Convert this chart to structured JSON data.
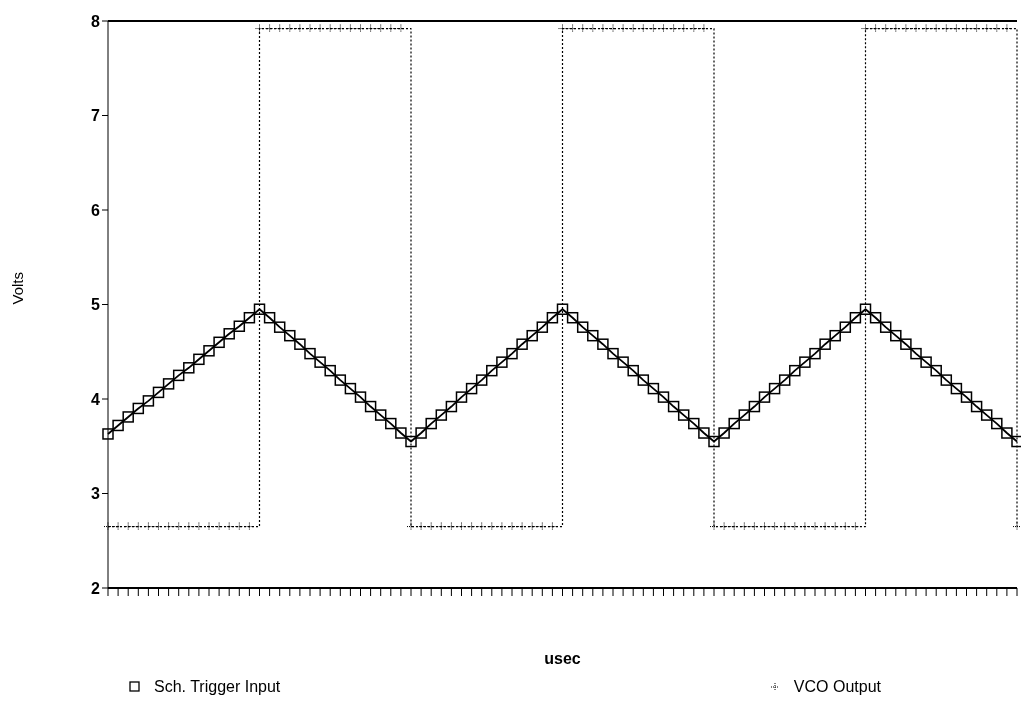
{
  "chart_data": {
    "type": "line",
    "xlabel": "usec",
    "ylabel": "Volts",
    "categories": [
      null,
      null,
      null,
      null,
      null,
      null,
      null,
      null,
      null,
      null,
      null,
      null,
      null,
      null,
      null,
      null,
      null,
      null,
      null,
      null,
      null,
      null,
      null,
      null,
      null,
      null,
      null,
      null,
      null,
      null,
      null,
      null,
      null,
      null,
      null,
      null,
      null,
      null,
      null,
      null,
      null,
      null,
      null,
      null,
      null,
      null,
      null,
      null,
      null,
      null,
      null,
      null,
      null,
      null,
      null,
      null,
      null,
      null,
      null,
      null,
      null,
      null,
      null,
      null,
      null,
      null,
      null,
      null,
      null,
      null,
      null,
      null,
      null,
      null,
      null,
      null,
      null,
      null,
      null,
      null,
      null,
      null,
      null,
      null,
      null,
      null,
      null,
      null,
      null,
      null,
      null
    ],
    "series": [
      {
        "name": "Sch. Trigger Input",
        "color": "#000000",
        "marker": "square",
        "line_style": "solid",
        "values": [
          3.63,
          3.72,
          3.81,
          3.9,
          3.98,
          4.07,
          4.16,
          4.25,
          4.33,
          4.42,
          4.51,
          4.6,
          4.69,
          4.77,
          4.86,
          4.95,
          4.86,
          4.76,
          4.67,
          4.58,
          4.48,
          4.39,
          4.3,
          4.2,
          4.11,
          4.02,
          3.92,
          3.83,
          3.74,
          3.64,
          3.55,
          3.64,
          3.74,
          3.83,
          3.92,
          4.02,
          4.11,
          4.2,
          4.3,
          4.39,
          4.48,
          4.58,
          4.67,
          4.76,
          4.86,
          4.95,
          4.86,
          4.76,
          4.67,
          4.58,
          4.48,
          4.39,
          4.3,
          4.2,
          4.11,
          4.02,
          3.92,
          3.83,
          3.74,
          3.64,
          3.55,
          3.64,
          3.74,
          3.83,
          3.92,
          4.02,
          4.11,
          4.2,
          4.3,
          4.39,
          4.48,
          4.58,
          4.67,
          4.76,
          4.86,
          4.95,
          4.86,
          4.76,
          4.67,
          4.58,
          4.48,
          4.39,
          4.3,
          4.2,
          4.11,
          4.02,
          3.92,
          3.83,
          3.74,
          3.64,
          3.55
        ]
      },
      {
        "name": "VCO Output",
        "type": "step",
        "color": "#000000",
        "marker": "cross",
        "line_style": "dotted",
        "values": [
          2.65,
          2.65,
          2.65,
          2.65,
          2.65,
          2.65,
          2.65,
          2.65,
          2.65,
          2.65,
          2.65,
          2.65,
          2.65,
          2.65,
          2.65,
          7.92,
          7.92,
          7.92,
          7.92,
          7.92,
          7.92,
          7.92,
          7.92,
          7.92,
          7.92,
          7.92,
          7.92,
          7.92,
          7.92,
          7.92,
          2.65,
          2.65,
          2.65,
          2.65,
          2.65,
          2.65,
          2.65,
          2.65,
          2.65,
          2.65,
          2.65,
          2.65,
          2.65,
          2.65,
          2.65,
          7.92,
          7.92,
          7.92,
          7.92,
          7.92,
          7.92,
          7.92,
          7.92,
          7.92,
          7.92,
          7.92,
          7.92,
          7.92,
          7.92,
          7.92,
          2.65,
          2.65,
          2.65,
          2.65,
          2.65,
          2.65,
          2.65,
          2.65,
          2.65,
          2.65,
          2.65,
          2.65,
          2.65,
          2.65,
          2.65,
          7.92,
          7.92,
          7.92,
          7.92,
          7.92,
          7.92,
          7.92,
          7.92,
          7.92,
          7.92,
          7.92,
          7.92,
          7.92,
          7.92,
          7.92,
          2.65
        ]
      }
    ],
    "ylim": [
      2,
      8
    ],
    "yticks": [
      2,
      3,
      4,
      5,
      6,
      7,
      8
    ],
    "grid": false,
    "legend": "bottom"
  }
}
